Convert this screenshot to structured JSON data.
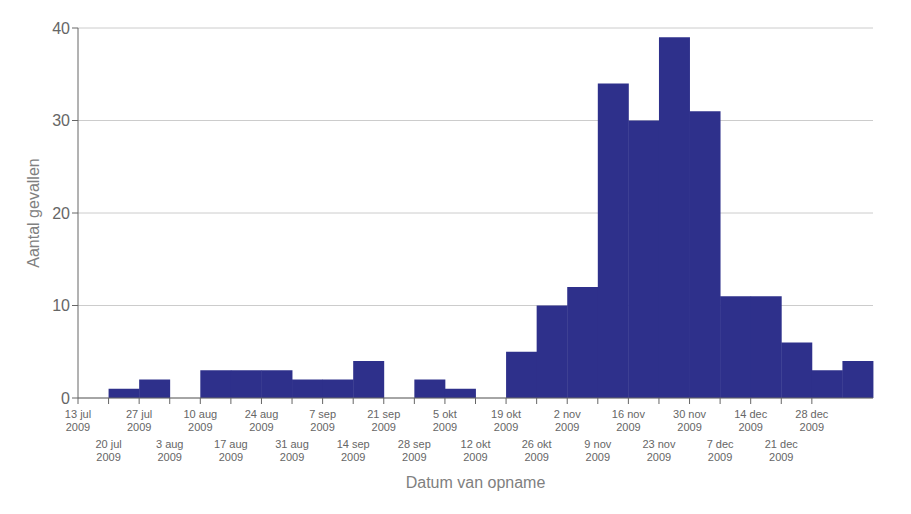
{
  "chart_data": {
    "type": "bar",
    "xlabel": "Datum van opname",
    "ylabel": "Aantal gevallen",
    "categories": [
      "13 jul\n2009",
      "20 jul\n2009",
      "27 jul\n2009",
      "3 aug\n2009",
      "10 aug\n2009",
      "17 aug\n2009",
      "24 aug\n2009",
      "31 aug\n2009",
      "7 sep\n2009",
      "14 sep\n2009",
      "21 sep\n2009",
      "28 sep\n2009",
      "5 okt\n2009",
      "12 okt\n2009",
      "19 okt\n2009",
      "26 okt\n2009",
      "2 nov\n2009",
      "9 nov\n2009",
      "16 nov\n2009",
      "23 nov\n2009",
      "30 nov\n2009",
      "7 dec\n2009",
      "14 dec\n2009",
      "21 dec\n2009",
      "28 dec\n2009",
      null
    ],
    "values": [
      0,
      1,
      2,
      0,
      3,
      3,
      3,
      2,
      2,
      4,
      0,
      2,
      1,
      0,
      5,
      10,
      12,
      34,
      30,
      39,
      31,
      11,
      11,
      6,
      3,
      4
    ],
    "color": "#2E308B",
    "ylim": [
      0,
      40
    ],
    "yticks": [
      0,
      10,
      20,
      30,
      40
    ],
    "grid": true
  }
}
